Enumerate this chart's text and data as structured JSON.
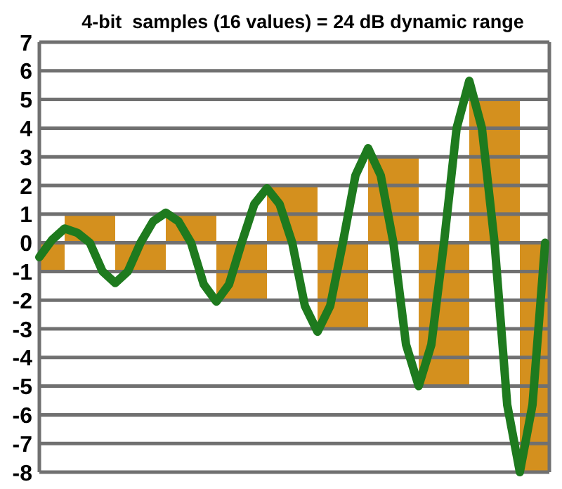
{
  "chart_data": [
    {
      "type": "bar",
      "title": "4-bit  samples (16 values) = 24 dB dynamic range",
      "categories": [
        null,
        null,
        null,
        null,
        null,
        null,
        null,
        null,
        null,
        null,
        null
      ],
      "values": [
        -1,
        1,
        -1,
        1,
        -2,
        2,
        -3,
        3,
        -5,
        5,
        -8
      ],
      "color": "#d4901e",
      "ylim": [
        -8,
        7
      ],
      "yticks": [
        -8,
        -7,
        -6,
        -5,
        -4,
        -3,
        -2,
        -1,
        0,
        1,
        2,
        3,
        4,
        5,
        6,
        7
      ],
      "grid": "y",
      "tick_labels": "y"
    },
    {
      "type": "line",
      "categories": [
        null,
        null,
        null,
        null,
        null,
        null,
        null,
        null,
        null,
        null,
        null,
        null,
        null,
        null,
        null,
        null,
        null,
        null,
        null,
        null,
        null,
        null,
        null,
        null,
        null,
        null,
        null,
        null,
        null,
        null,
        null,
        null,
        null,
        null,
        null,
        null,
        null,
        null,
        null,
        null,
        null
      ],
      "values": [
        -0.5,
        0.1,
        0.5,
        0.35,
        0,
        -1.0,
        -1.4,
        -1.0,
        0,
        0.75,
        1.05,
        0.75,
        0,
        -1.45,
        -2.05,
        -1.45,
        0,
        1.35,
        1.9,
        1.35,
        0,
        -2.2,
        -3.1,
        -2.2,
        0,
        2.35,
        3.3,
        2.35,
        0,
        -3.55,
        -5,
        -3.55,
        0,
        4.0,
        5.65,
        4.0,
        0,
        -5.65,
        -8,
        -5.65,
        0
      ],
      "color": "#1e7a1e",
      "ylim": [
        -8,
        7
      ],
      "tick_labels": false,
      "marker": "none",
      "line_style": "solid"
    }
  ]
}
